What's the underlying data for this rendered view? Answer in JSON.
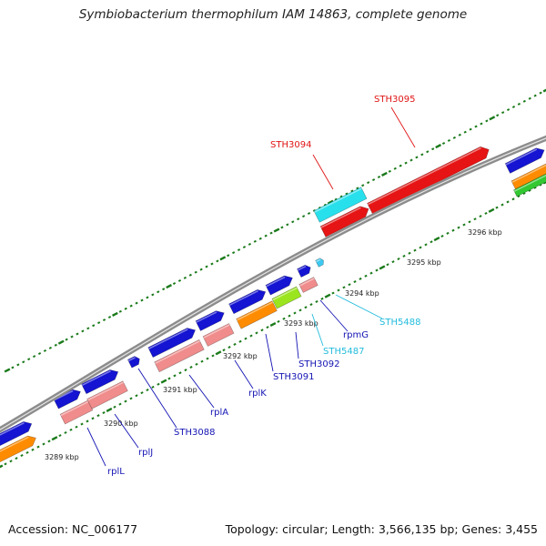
{
  "title": "Symbiobacterium thermophilum IAM 14863, complete genome",
  "footer": {
    "accession": "Accession: NC_006177",
    "summary": "Topology: circular; Length: 3,566,135 bp; Genes: 3,455"
  },
  "colors": {
    "backbone": "#8c8c8c",
    "ticks": "#1a7a1a",
    "blue": "#1414d2",
    "pink": "#f08c8c",
    "orange": "#ff8c00",
    "lime": "#9be51e",
    "green": "#32c832",
    "red": "#e61414",
    "cyan": "#28e0ec",
    "light_blue": "#3cc8f0",
    "label_blue": "#1414b4",
    "label_cyan": "#22bcdc",
    "label_red": "#e01414"
  },
  "scale_labels": [
    "3289 kbp",
    "3290 kbp",
    "3291 kbp",
    "3292 kbp",
    "3293 kbp",
    "3294 kbp",
    "3295 kbp",
    "3296 kbp"
  ],
  "gene_labels": [
    {
      "text": "rplL",
      "color": "label_blue"
    },
    {
      "text": "rplJ",
      "color": "label_blue"
    },
    {
      "text": "STH3088",
      "color": "label_blue"
    },
    {
      "text": "rplA",
      "color": "label_blue"
    },
    {
      "text": "rplK",
      "color": "label_blue"
    },
    {
      "text": "STH3091",
      "color": "label_blue"
    },
    {
      "text": "STH3092",
      "color": "label_blue"
    },
    {
      "text": "STH5487",
      "color": "label_cyan"
    },
    {
      "text": "rpmG",
      "color": "label_blue"
    },
    {
      "text": "STH5488",
      "color": "label_cyan"
    },
    {
      "text": "STH3094",
      "color": "label_red"
    },
    {
      "text": "STH3095",
      "color": "label_red"
    }
  ]
}
